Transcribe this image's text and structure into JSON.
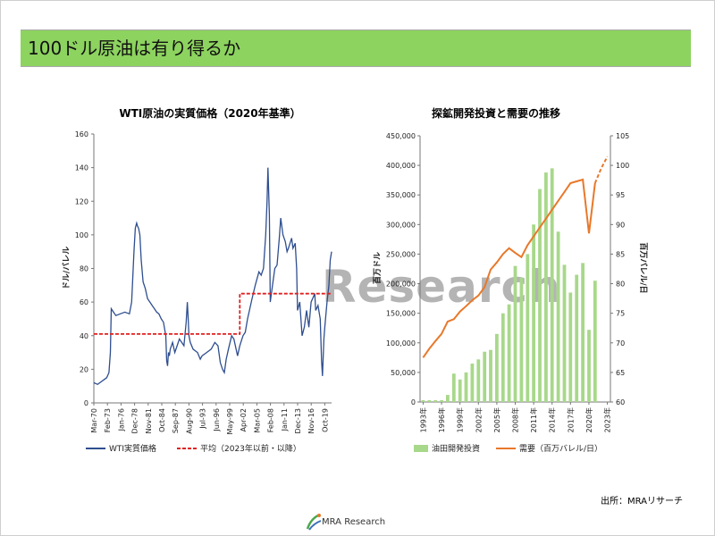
{
  "header": {
    "title": "100ドル原油は有り得るか"
  },
  "source": "出所：MRAリサーチ",
  "logo_text": "MRA Research",
  "watermark": "Research",
  "colors": {
    "header_bg": "#8dd35f",
    "wti_line": "#2e4e8f",
    "average": "#e02020",
    "investment": "#a8d88a",
    "demand": "#e8782a"
  },
  "chart_data": [
    {
      "type": "line",
      "title": "WTI原油の実質価格（2020年基準）",
      "ylabel": "ドル/バレル",
      "xlabel": "",
      "ylim": [
        0,
        160
      ],
      "yticks": [
        0,
        20,
        40,
        60,
        80,
        100,
        120,
        140,
        160
      ],
      "xlim": [
        1970.17,
        2022.5
      ],
      "xticks": [
        "Mar-70",
        "Feb-73",
        "Jan-76",
        "Dec-78",
        "Nov-81",
        "Oct-84",
        "Sep-87",
        "Aug-90",
        "Jul-93",
        "Jun-96",
        "May-99",
        "Apr-02",
        "Mar-05",
        "Feb-08",
        "Jan-11",
        "Dec-13",
        "Nov-16",
        "Oct-19"
      ],
      "grid": false,
      "legend_position": "bottom",
      "series": [
        {
          "name": "WTI実質価格",
          "x": [
            1970.17,
            1971.0,
            1972.0,
            1972.5,
            1973.0,
            1973.5,
            1973.8,
            1974.0,
            1974.5,
            1975.0,
            1976.0,
            1977.0,
            1978.0,
            1978.5,
            1979.0,
            1979.3,
            1979.6,
            1979.8,
            1980.0,
            1980.3,
            1980.6,
            1981.0,
            1981.5,
            1982.0,
            1982.5,
            1983.0,
            1983.5,
            1984.0,
            1984.5,
            1985.0,
            1985.5,
            1986.0,
            1986.2,
            1986.4,
            1986.6,
            1986.8,
            1987.0,
            1987.5,
            1988.0,
            1988.5,
            1989.0,
            1989.5,
            1990.0,
            1990.5,
            1990.75,
            1990.9,
            1991.1,
            1991.4,
            1992.0,
            1993.0,
            1993.6,
            1994.0,
            1995.0,
            1996.0,
            1996.8,
            1997.5,
            1998.0,
            1998.5,
            1998.9,
            1999.3,
            1999.8,
            2000.5,
            2001.0,
            2001.8,
            2002.3,
            2003.0,
            2003.5,
            2004.0,
            2004.5,
            2005.0,
            2005.7,
            2006.5,
            2007.0,
            2007.5,
            2008.0,
            2008.3,
            2008.5,
            2008.8,
            2009.0,
            2009.5,
            2010.0,
            2010.5,
            2011.0,
            2011.3,
            2011.8,
            2012.3,
            2012.7,
            2013.0,
            2013.7,
            2014.0,
            2014.5,
            2014.8,
            2015.0,
            2015.5,
            2016.0,
            2016.5,
            2017.0,
            2017.5,
            2018.0,
            2018.8,
            2019.0,
            2019.5,
            2020.0,
            2020.3,
            2020.5,
            2020.8,
            2021.0,
            2021.5,
            2021.9,
            2022.2,
            2022.5
          ],
          "values": [
            12,
            11,
            13,
            14,
            15,
            18,
            30,
            56,
            54,
            52,
            53,
            54,
            53,
            60,
            90,
            104,
            107,
            105,
            104,
            100,
            85,
            72,
            68,
            62,
            60,
            58,
            56,
            54,
            53,
            50,
            48,
            40,
            25,
            22,
            30,
            28,
            32,
            36,
            30,
            34,
            38,
            36,
            34,
            48,
            60,
            52,
            40,
            36,
            32,
            30,
            26,
            28,
            30,
            32,
            36,
            34,
            24,
            20,
            18,
            26,
            32,
            40,
            38,
            28,
            34,
            40,
            42,
            50,
            56,
            62,
            70,
            78,
            76,
            80,
            100,
            120,
            140,
            112,
            60,
            70,
            80,
            82,
            98,
            110,
            100,
            96,
            90,
            92,
            98,
            92,
            95,
            80,
            55,
            60,
            40,
            45,
            55,
            45,
            60,
            65,
            55,
            58,
            50,
            25,
            16,
            38,
            45,
            60,
            70,
            85,
            90
          ]
        },
        {
          "name": "平均（2023年以前・以降）",
          "style": "dashed",
          "segments": [
            {
              "x_start": 1970.17,
              "x_end": 2002.3,
              "value": 41
            },
            {
              "x_start": 2002.3,
              "x_end": 2022.5,
              "value": 65
            }
          ]
        }
      ]
    },
    {
      "type": "bar",
      "title": "探鉱開発投資と需要の推移",
      "ylabel": "百万ドル",
      "y2label": "百万バレル/日",
      "ylim": [
        0,
        450000
      ],
      "yticks": [
        "0",
        "50,000",
        "100,000",
        "150,000",
        "200,000",
        "250,000",
        "300,000",
        "350,000",
        "400,000",
        "450,000"
      ],
      "y2lim": [
        60,
        105
      ],
      "y2ticks": [
        60,
        65,
        70,
        75,
        80,
        85,
        90,
        95,
        100,
        105
      ],
      "categories": [
        "1993年",
        "1994年",
        "1995年",
        "1996年",
        "1997年",
        "1998年",
        "1999年",
        "2000年",
        "2001年",
        "2002年",
        "2003年",
        "2004年",
        "2005年",
        "2006年",
        "2007年",
        "2008年",
        "2009年",
        "2010年",
        "2011年",
        "2012年",
        "2013年",
        "2014年",
        "2015年",
        "2016年",
        "2017年",
        "2018年",
        "2019年",
        "2020年",
        "2021年",
        "2022年",
        "2023年"
      ],
      "xticks": [
        "1993年",
        "1996年",
        "1999年",
        "2002年",
        "2005年",
        "2008年",
        "2011年",
        "2014年",
        "2017年",
        "2020年",
        "2023年"
      ],
      "grid": false,
      "legend_position": "bottom",
      "series": [
        {
          "name": "油田開発投資",
          "axis": "left",
          "values": [
            3000,
            3000,
            3000,
            3000,
            12000,
            48000,
            38000,
            50000,
            65000,
            72000,
            85000,
            88000,
            115000,
            150000,
            165000,
            230000,
            210000,
            250000,
            300000,
            360000,
            388000,
            395000,
            288000,
            232000,
            185000,
            215000,
            235000,
            122000,
            205000,
            null,
            null
          ]
        },
        {
          "name": "需要（百万バレル/日）",
          "axis": "right",
          "values": [
            67.5,
            69.0,
            70.3,
            71.5,
            73.6,
            74.0,
            75.3,
            76.2,
            77.2,
            78.0,
            79.4,
            82.4,
            83.6,
            85.0,
            86.0,
            85.2,
            84.5,
            86.5,
            88.0,
            89.5,
            91.0,
            92.5,
            94.0,
            95.5,
            97.0,
            97.3,
            97.6,
            88.5,
            97.0,
            99.5,
            101.5
          ],
          "projection_from": "2021年"
        }
      ]
    }
  ]
}
